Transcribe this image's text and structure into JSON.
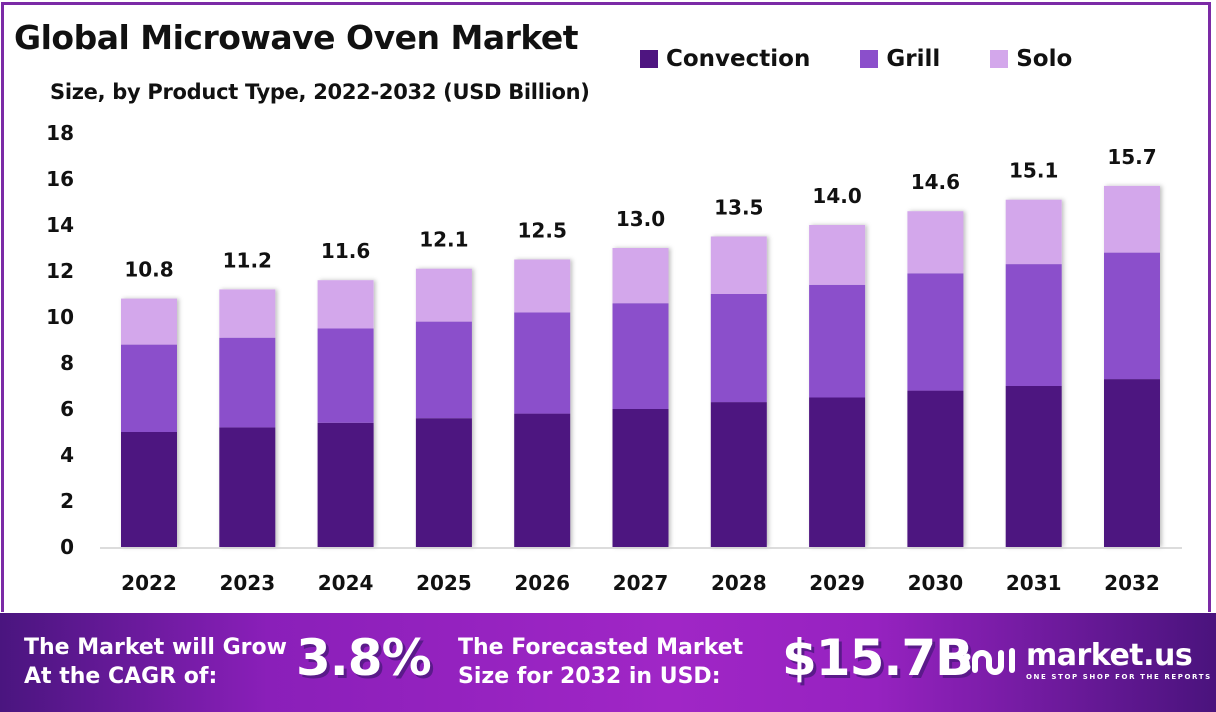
{
  "header": {
    "title": "Global Microwave Oven Market",
    "subtitle": "Size, by Product Type, 2022-2032 (USD Billion)"
  },
  "legend": [
    {
      "label": "Convection",
      "color": "#4e1580"
    },
    {
      "label": "Grill",
      "color": "#8b4fcb"
    },
    {
      "label": "Solo",
      "color": "#d3a7eb"
    }
  ],
  "chart_data": {
    "type": "bar",
    "stacked": true,
    "title": "Global Microwave Oven Market",
    "subtitle": "Size, by Product Type, 2022-2032 (USD Billion)",
    "xlabel": "",
    "ylabel": "",
    "ylim": [
      0,
      18
    ],
    "yticks": [
      "0",
      "2",
      "4",
      "6",
      "8",
      "10",
      "12",
      "14",
      "16",
      "18"
    ],
    "grid": false,
    "legend_position": "top-right",
    "categories": [
      "2022",
      "2023",
      "2024",
      "2025",
      "2026",
      "2027",
      "2028",
      "2029",
      "2030",
      "2031",
      "2032"
    ],
    "series": [
      {
        "name": "Convection",
        "color": "#4e1580",
        "values": [
          5.0,
          5.2,
          5.4,
          5.6,
          5.8,
          6.0,
          6.3,
          6.5,
          6.8,
          7.0,
          7.3
        ]
      },
      {
        "name": "Grill",
        "color": "#8b4fcb",
        "values": [
          3.8,
          3.9,
          4.1,
          4.2,
          4.4,
          4.6,
          4.7,
          4.9,
          5.1,
          5.3,
          5.5
        ]
      },
      {
        "name": "Solo",
        "color": "#d3a7eb",
        "values": [
          2.0,
          2.1,
          2.1,
          2.3,
          2.3,
          2.4,
          2.5,
          2.6,
          2.7,
          2.8,
          2.9
        ]
      }
    ],
    "totals": [
      10.8,
      11.2,
      11.6,
      12.1,
      12.5,
      13.0,
      13.5,
      14.0,
      14.6,
      15.1,
      15.7
    ],
    "total_labels": [
      "10.8",
      "11.2",
      "11.6",
      "12.1",
      "12.5",
      "13.0",
      "13.5",
      "14.0",
      "14.6",
      "15.1",
      "15.7"
    ]
  },
  "banner": {
    "cagr_text_line1": "The Market will Grow",
    "cagr_text_line2": "At the CAGR of:",
    "cagr_value": "3.8%",
    "forecast_text_line1": "The Forecasted Market",
    "forecast_text_line2": "Size for 2032 in USD:",
    "forecast_value": "$15.7B",
    "logo_name": "market.us",
    "logo_tagline": "ONE STOP SHOP FOR THE REPORTS",
    "logo_icon": "market-us-logo-icon"
  }
}
